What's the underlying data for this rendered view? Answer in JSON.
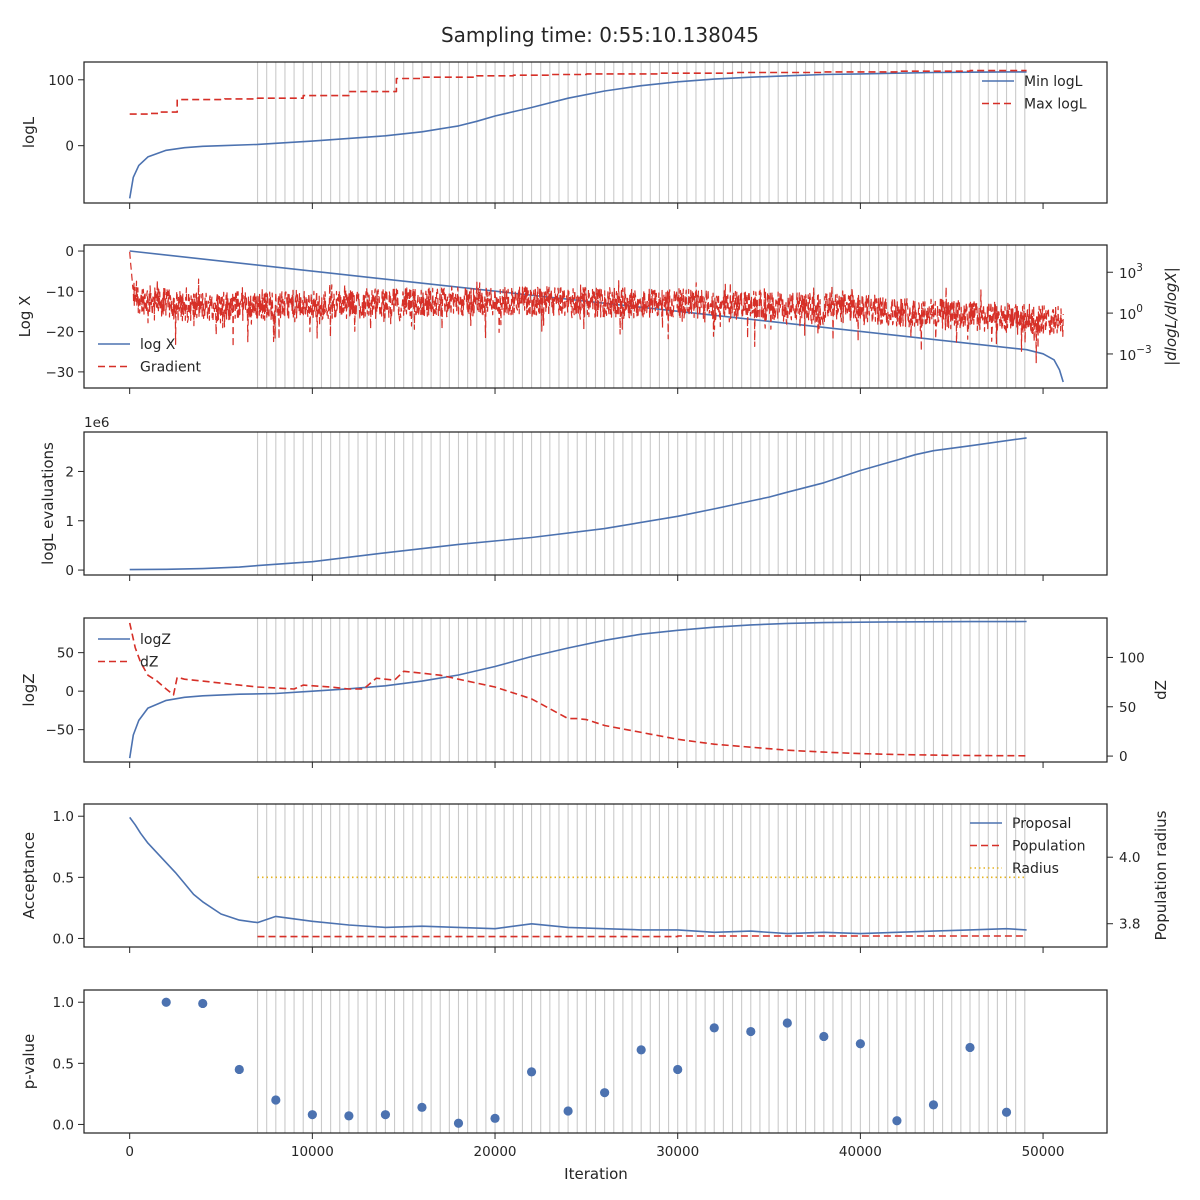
{
  "title": "Sampling time: 0:55:10.138045",
  "colors": {
    "blue": "#4c72b0",
    "red": "#d62f27",
    "gold": "#e6b422",
    "grey": "#bdbdbd"
  },
  "x_axis": {
    "label": "Iteration",
    "ticks": [
      0,
      10000,
      20000,
      30000,
      40000,
      50000
    ],
    "tick_labels": [
      "0",
      "10000",
      "20000",
      "30000",
      "40000",
      "50000"
    ],
    "lim": [
      -2500,
      53500
    ]
  },
  "chart_data": [
    {
      "type": "line",
      "ylabel": "logL",
      "ylim": [
        -87,
        127
      ],
      "yticks": [
        0,
        100
      ],
      "ytick_labels": [
        "0",
        "100"
      ],
      "legend": {
        "loc": "upper right",
        "entries": [
          "Min logL",
          "Max logL"
        ]
      },
      "series": [
        {
          "name": "Min logL",
          "style": "solid",
          "color": "blue",
          "x": [
            0,
            200,
            500,
            1000,
            2000,
            3000,
            4000,
            5000,
            7000,
            10000,
            14000,
            16000,
            18000,
            19000,
            20000,
            22000,
            24000,
            26000,
            28000,
            30000,
            32000,
            34000,
            36000,
            38000,
            40000,
            42000,
            44000,
            46000,
            48000,
            49100
          ],
          "y": [
            -80,
            -48,
            -30,
            -17,
            -7,
            -3,
            -1,
            0,
            2,
            7,
            15,
            21,
            30,
            37,
            45,
            58,
            72,
            83,
            91,
            97,
            101,
            104,
            106,
            108,
            109,
            110,
            111,
            111.5,
            112,
            112
          ]
        },
        {
          "name": "Max logL",
          "style": "dashed",
          "color": "red",
          "x": [
            0,
            1100,
            1100,
            1600,
            1600,
            2600,
            2600,
            5200,
            5200,
            7000,
            7000,
            9500,
            9500,
            12000,
            12000,
            14600,
            14600,
            16000,
            16000,
            19000,
            19000,
            21000,
            21000,
            23000,
            23000,
            25000,
            25000,
            29000,
            29000,
            33000,
            33000,
            38000,
            38000,
            42000,
            42000,
            46000,
            46000,
            49100
          ],
          "y": [
            48,
            48,
            49,
            49,
            51,
            51,
            70,
            70,
            71,
            71,
            72,
            72,
            76,
            76,
            82,
            82,
            102,
            102,
            104,
            104,
            106,
            106,
            107,
            107,
            108,
            108,
            109,
            109,
            110,
            110,
            111,
            111,
            112,
            112,
            113,
            113,
            114,
            114
          ]
        }
      ]
    },
    {
      "type": "line",
      "ylabel": "Log X",
      "ylim": [
        -34,
        1.5
      ],
      "yticks": [
        0,
        -10,
        -20,
        -30
      ],
      "ytick_labels": [
        "0",
        "−10",
        "−20",
        "−30"
      ],
      "y2label": "|dlogL/dlogX|",
      "y2_log": true,
      "y2lim_log10": [
        -5.5,
        5.0
      ],
      "y2ticks_log10": [
        3,
        0,
        -3
      ],
      "y2tick_labels": [
        "3",
        "0",
        "−3"
      ],
      "legend": {
        "loc": "lower left",
        "entries": [
          "log X",
          "Gradient"
        ]
      },
      "series": [
        {
          "name": "log X",
          "style": "solid",
          "color": "blue",
          "axis": "left",
          "x": [
            0,
            49100,
            50000,
            50600,
            50900,
            51100
          ],
          "y": [
            0,
            -24.5,
            -25.5,
            -27,
            -29.5,
            -32.5
          ]
        },
        {
          "name": "Gradient",
          "style": "dashed",
          "color": "red",
          "axis": "right",
          "noisy": true,
          "x_range": [
            0,
            51100
          ],
          "median_log10": [
            [
              0,
              1.2
            ],
            [
              3000,
              0.5
            ],
            [
              10000,
              0.6
            ],
            [
              20000,
              0.9
            ],
            [
              30000,
              0.7
            ],
            [
              40000,
              0.3
            ],
            [
              51100,
              -0.6
            ]
          ],
          "spread_log10": [
            -2.2,
            1.5
          ]
        }
      ]
    },
    {
      "type": "line",
      "ylabel": "logL evaluations",
      "offset_text": "1e6",
      "ylim": [
        -0.1,
        2.8
      ],
      "yticks": [
        0,
        1,
        2
      ],
      "ytick_labels": [
        "0",
        "1",
        "2"
      ],
      "series": [
        {
          "name": "",
          "style": "solid",
          "color": "blue",
          "x": [
            0,
            2000,
            4000,
            6000,
            7000,
            10000,
            14000,
            18000,
            22000,
            26000,
            30000,
            32000,
            34000,
            35000,
            36000,
            38000,
            40000,
            42000,
            43000,
            44000,
            46000,
            49100
          ],
          "y": [
            0.01,
            0.015,
            0.03,
            0.06,
            0.09,
            0.17,
            0.35,
            0.52,
            0.66,
            0.84,
            1.09,
            1.24,
            1.4,
            1.48,
            1.58,
            1.77,
            2.02,
            2.23,
            2.34,
            2.42,
            2.52,
            2.68
          ]
        }
      ]
    },
    {
      "type": "line",
      "ylabel": "logZ",
      "ylim": [
        -92,
        95
      ],
      "yticks": [
        50,
        0,
        -50
      ],
      "ytick_labels": [
        "50",
        "0",
        "−50"
      ],
      "y2label": "dZ",
      "y2lim": [
        -6,
        140
      ],
      "y2ticks": [
        100,
        50,
        0
      ],
      "y2tick_labels": [
        "100",
        "50",
        "0"
      ],
      "legend": {
        "loc": "upper left",
        "entries": [
          "logZ",
          "dZ"
        ]
      },
      "series": [
        {
          "name": "logZ",
          "style": "solid",
          "color": "blue",
          "axis": "left",
          "x": [
            0,
            200,
            500,
            1000,
            2000,
            3000,
            4000,
            6000,
            8000,
            10000,
            12000,
            14000,
            16000,
            18000,
            20000,
            22000,
            24000,
            26000,
            28000,
            30000,
            32000,
            34000,
            36000,
            38000,
            40000,
            42000,
            46000,
            49100
          ],
          "y": [
            -87,
            -57,
            -38,
            -22,
            -12,
            -8,
            -6,
            -4,
            -3,
            0,
            3,
            7,
            13,
            21,
            32,
            45,
            56,
            66,
            74,
            79,
            83,
            86,
            88,
            89,
            89.5,
            90,
            90.3,
            90.5
          ]
        },
        {
          "name": "dZ",
          "style": "dashed",
          "color": "red",
          "axis": "right",
          "x": [
            0,
            300,
            600,
            1000,
            1500,
            2000,
            2400,
            2600,
            3000,
            4000,
            5000,
            6000,
            7000,
            9000,
            9500,
            11000,
            12000,
            12800,
            13500,
            14000,
            14500,
            15000,
            16000,
            17000,
            18000,
            20000,
            22000,
            24000,
            24500,
            25000,
            26000,
            28000,
            30000,
            32000,
            34000,
            36000,
            38000,
            40000,
            42000,
            44000,
            46000,
            49100
          ],
          "y": [
            135,
            110,
            95,
            82,
            76,
            68,
            62,
            80,
            78,
            76,
            74,
            72,
            70,
            68,
            72,
            70,
            68,
            68,
            79,
            78,
            77,
            86,
            84,
            82,
            78,
            70,
            58,
            38,
            38,
            37,
            31,
            24,
            17,
            12,
            9,
            6,
            4,
            2.5,
            1.6,
            1,
            0.6,
            0.3
          ]
        }
      ]
    },
    {
      "type": "line",
      "ylabel": "Acceptance",
      "ylim": [
        -0.07,
        1.1
      ],
      "yticks": [
        0,
        0.5,
        1.0
      ],
      "ytick_labels": [
        "0.0",
        "0.5",
        "1.0"
      ],
      "y2label": "Population radius",
      "y2lim": [
        3.73,
        4.16
      ],
      "y2ticks": [
        3.8,
        4.0
      ],
      "y2tick_labels": [
        "3.8",
        "4.0"
      ],
      "legend": {
        "loc": "upper right",
        "entries": [
          "Proposal",
          "Population",
          "Radius"
        ]
      },
      "series": [
        {
          "name": "Proposal",
          "style": "solid",
          "color": "blue",
          "axis": "left",
          "x": [
            0,
            300,
            600,
            1000,
            1500,
            2000,
            2500,
            3000,
            3500,
            4000,
            5000,
            6000,
            7000,
            8000,
            10000,
            12000,
            14000,
            16000,
            18000,
            20000,
            22000,
            24000,
            26000,
            28000,
            30000,
            32000,
            34000,
            36000,
            38000,
            40000,
            42000,
            44000,
            46000,
            48000,
            49100
          ],
          "y": [
            0.99,
            0.93,
            0.86,
            0.78,
            0.7,
            0.62,
            0.54,
            0.45,
            0.36,
            0.3,
            0.2,
            0.15,
            0.13,
            0.18,
            0.14,
            0.11,
            0.09,
            0.1,
            0.09,
            0.08,
            0.12,
            0.09,
            0.08,
            0.07,
            0.07,
            0.05,
            0.06,
            0.04,
            0.05,
            0.04,
            0.05,
            0.06,
            0.07,
            0.08,
            0.07
          ]
        },
        {
          "name": "Population",
          "style": "dashed",
          "color": "red",
          "axis": "left",
          "x": [
            7000,
            30000,
            30000,
            49100
          ],
          "y": [
            0.015,
            0.015,
            0.02,
            0.02
          ]
        },
        {
          "name": "Radius",
          "style": "dotted",
          "color": "gold",
          "axis": "left",
          "x": [
            7000,
            49100
          ],
          "y": [
            0.5,
            0.5
          ]
        }
      ]
    },
    {
      "type": "scatter",
      "ylabel": "p-value",
      "ylim": [
        -0.07,
        1.1
      ],
      "yticks": [
        0,
        0.5,
        1.0
      ],
      "ytick_labels": [
        "0.0",
        "0.5",
        "1.0"
      ],
      "series": [
        {
          "name": "",
          "color": "blue",
          "x": [
            2000,
            4000,
            6000,
            8000,
            10000,
            12000,
            14000,
            16000,
            18000,
            20000,
            22000,
            24000,
            26000,
            28000,
            30000,
            32000,
            34000,
            36000,
            38000,
            40000,
            42000,
            44000,
            46000,
            48000
          ],
          "y": [
            1.0,
            0.99,
            0.45,
            0.2,
            0.08,
            0.07,
            0.08,
            0.14,
            0.01,
            0.05,
            0.43,
            0.11,
            0.26,
            0.61,
            0.45,
            0.79,
            0.76,
            0.83,
            0.72,
            0.66,
            0.03,
            0.16,
            0.63,
            0.1
          ]
        }
      ]
    }
  ],
  "vertical_lines": {
    "start": 7000,
    "end": 49100,
    "step": 500
  }
}
